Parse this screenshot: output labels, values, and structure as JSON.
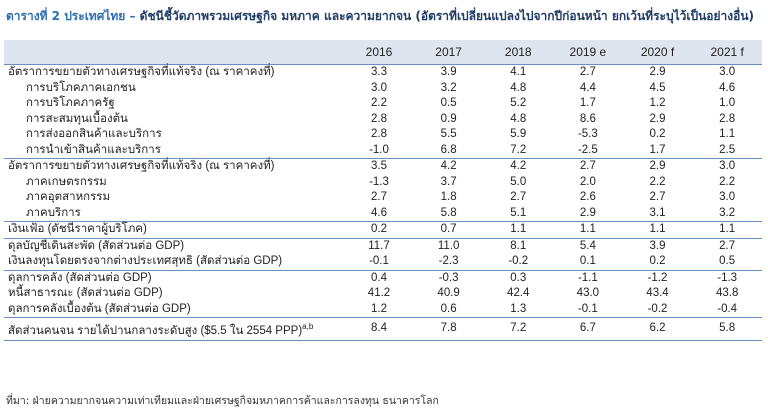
{
  "title": {
    "label": "ตารางที่ 2 ประเทศไทย –",
    "text": "ดัชนีชี้วัดภาพรวมเศรษฐกิจ มหภาค และความยากจน (อัตราที่เปลี่ยนแปลงไปจากปีก่อนหน้า ยกเว้นที่ระบุไว้เป็นอย่างอื่น)"
  },
  "header": {
    "label": "",
    "years": [
      "2016",
      "2017",
      "2018",
      "2019 e",
      "2020 f",
      "2021 f"
    ]
  },
  "rows": [
    {
      "label": "อัตราการขยายตัวทางเศรษฐกิจที่แท้จริง (ณ ราคาคงที่)",
      "values": [
        "3.3",
        "3.9",
        "4.1",
        "2.7",
        "2.9",
        "3.0"
      ]
    },
    {
      "label": "การบริโภคภาคเอกชน",
      "values": [
        "3.0",
        "3.2",
        "4.8",
        "4.4",
        "4.5",
        "4.6"
      ]
    },
    {
      "label": "การบริโภคภาครัฐ",
      "values": [
        "2.2",
        "0.5",
        "5.2",
        "1.7",
        "1.2",
        "1.0"
      ]
    },
    {
      "label": "การสะสมทุนเบื้องต้น",
      "values": [
        "2.8",
        "0.9",
        "4.8",
        "8.6",
        "2.9",
        "2.8"
      ]
    },
    {
      "label": "การส่งออกสินค้าและบริการ",
      "values": [
        "2.8",
        "5.5",
        "5.9",
        "-5.3",
        "0.2",
        "1.1"
      ]
    },
    {
      "label": "การนำเข้าสินค้าและบริการ",
      "values": [
        "-1.0",
        "6.8",
        "7.2",
        "-2.5",
        "1.7",
        "2.5"
      ]
    },
    {
      "label": "อัตราการขยายตัวทางเศรษฐกิจที่แท้จริง (ณ ราคาคงที่)",
      "values": [
        "3.5",
        "4.2",
        "4.2",
        "2.7",
        "2.9",
        "3.0"
      ]
    },
    {
      "label": "ภาคเกษตรกรรม",
      "values": [
        "-1.3",
        "3.7",
        "5.0",
        "2.0",
        "2.2",
        "2.2"
      ]
    },
    {
      "label": "ภาคอุตสาหกรรม",
      "values": [
        "2.7",
        "1.8",
        "2.7",
        "2.6",
        "2.7",
        "3.0"
      ]
    },
    {
      "label": "ภาคบริการ",
      "values": [
        "4.6",
        "5.8",
        "5.1",
        "2.9",
        "3.1",
        "3.2"
      ]
    },
    {
      "label": "เงินเฟ้อ (ดัชนีราคาผู้บริโภค)",
      "values": [
        "0.2",
        "0.7",
        "1.1",
        "1.1",
        "1.1",
        "1.1"
      ]
    },
    {
      "label": "ดุลบัญชีเดินสะพัด (สัดส่วนต่อ GDP)",
      "values": [
        "11.7",
        "11.0",
        "8.1",
        "5.4",
        "3.9",
        "2.7"
      ]
    },
    {
      "label": "เงินลงทุนโดยตรงจากต่างประเทศสุทธิ (สัดส่วนต่อ GDP)",
      "values": [
        "-0.1",
        "-2.3",
        "-0.2",
        "0.1",
        "0.2",
        "0.5"
      ]
    },
    {
      "label": "ดุลการคลัง (สัดส่วนต่อ GDP)",
      "values": [
        "0.4",
        "-0.3",
        "0.3",
        "-1.1",
        "-1.2",
        "-1.3"
      ]
    },
    {
      "label": "หนี้สาธารณะ (สัดส่วนต่อ GDP)",
      "values": [
        "41.2",
        "40.9",
        "42.4",
        "43.0",
        "43.4",
        "43.8"
      ]
    },
    {
      "label": "ดุลการคลังเบื้องต้น (สัดส่วนต่อ GDP)",
      "values": [
        "1.2",
        "0.6",
        "1.3",
        "-0.1",
        "-0.2",
        "-0.4"
      ]
    },
    {
      "label": "สัดส่วนคนจน รายได้ปานกลางระดับสูง ($5.5 ใน 2554 PPP)",
      "label_sup": "a,b",
      "values": [
        "8.4",
        "7.8",
        "7.2",
        "6.7",
        "6.2",
        "5.8"
      ]
    }
  ],
  "note": "ที่มา: ฝ่ายความยากจนความเท่าเทียมและฝ่ายเศรษฐกิจมหภาคการค้าและการลงทุน ธนาคารโลก"
}
